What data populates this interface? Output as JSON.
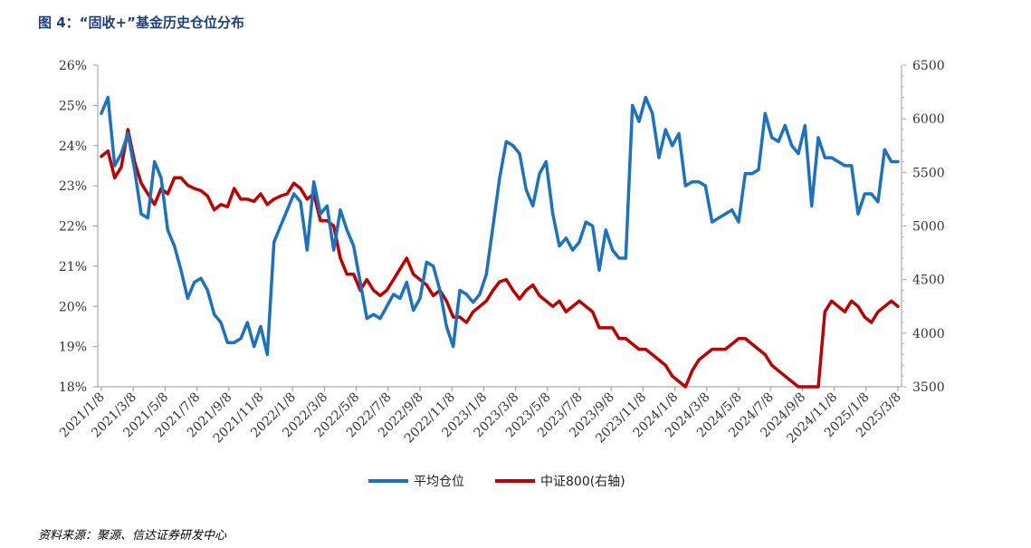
{
  "title": "图 4：“固收+”基金历史仓位分布",
  "source": "资料来源：聚源、信达证券研发中心",
  "chart_data": {
    "type": "line",
    "x_ticks": [
      "2021/1/8",
      "2021/3/8",
      "2021/5/8",
      "2021/7/8",
      "2021/9/8",
      "2021/11/8",
      "2022/1/8",
      "2022/3/8",
      "2022/5/8",
      "2022/7/8",
      "2022/9/8",
      "2022/11/8",
      "2023/1/8",
      "2023/3/8",
      "2023/5/8",
      "2023/7/8",
      "2023/9/8",
      "2023/11/8",
      "2024/1/8",
      "2024/3/8",
      "2024/5/8",
      "2024/7/8",
      "2024/9/8",
      "2024/11/8",
      "2025/1/8",
      "2025/3/8"
    ],
    "y_left": {
      "ticks": [
        "18%",
        "19%",
        "20%",
        "21%",
        "22%",
        "23%",
        "24%",
        "25%",
        "26%"
      ],
      "min": 18,
      "max": 26
    },
    "y_right": {
      "ticks": [
        "3500",
        "4000",
        "4500",
        "5000",
        "5500",
        "6000",
        "6500"
      ],
      "min": 3500,
      "max": 6500
    },
    "series": [
      {
        "name": "平均仓位",
        "axis": "left",
        "color": "#1a72c0",
        "values": [
          24.8,
          25.2,
          23.5,
          23.8,
          24.3,
          23.4,
          22.3,
          22.2,
          23.6,
          23.2,
          21.9,
          21.5,
          20.9,
          20.2,
          20.6,
          20.7,
          20.4,
          19.8,
          19.6,
          19.1,
          19.1,
          19.2,
          19.6,
          19.0,
          19.5,
          18.8,
          21.6,
          22.0,
          22.4,
          22.8,
          22.6,
          21.4,
          23.1,
          22.3,
          22.5,
          21.4,
          22.4,
          21.9,
          21.5,
          20.6,
          19.7,
          19.8,
          19.7,
          20.0,
          20.3,
          20.2,
          20.6,
          19.9,
          20.2,
          21.1,
          21.0,
          20.4,
          19.5,
          19.0,
          20.4,
          20.3,
          20.1,
          20.3,
          20.8,
          22.0,
          23.2,
          24.1,
          24.0,
          23.8,
          22.9,
          22.5,
          23.3,
          23.6,
          22.3,
          21.5,
          21.7,
          21.4,
          21.6,
          22.1,
          22.0,
          20.9,
          21.9,
          21.4,
          21.2,
          21.2,
          25.0,
          24.6,
          25.2,
          24.8,
          23.7,
          24.4,
          24.0,
          24.3,
          23.0,
          23.1,
          23.1,
          23.0,
          22.1,
          22.2,
          22.3,
          22.4,
          22.1,
          23.3,
          23.3,
          23.4,
          24.8,
          24.2,
          24.1,
          24.5,
          24.0,
          23.8,
          24.5,
          22.5,
          24.2,
          23.7,
          23.7,
          23.6,
          23.5,
          23.5,
          22.3,
          22.8,
          22.8,
          22.6,
          23.9,
          23.6,
          23.6
        ]
      },
      {
        "name": "中证800(右轴)",
        "axis": "right",
        "color": "#c00000",
        "values": [
          5650,
          5700,
          5450,
          5550,
          5900,
          5600,
          5400,
          5300,
          5200,
          5350,
          5300,
          5450,
          5450,
          5380,
          5350,
          5330,
          5280,
          5150,
          5200,
          5180,
          5350,
          5250,
          5250,
          5230,
          5300,
          5200,
          5250,
          5280,
          5300,
          5400,
          5350,
          5250,
          5300,
          5050,
          5050,
          5000,
          4700,
          4550,
          4550,
          4400,
          4500,
          4400,
          4350,
          4400,
          4500,
          4600,
          4700,
          4550,
          4500,
          4450,
          4350,
          4400,
          4300,
          4150,
          4150,
          4100,
          4200,
          4250,
          4300,
          4400,
          4480,
          4500,
          4400,
          4320,
          4400,
          4450,
          4350,
          4300,
          4250,
          4300,
          4200,
          4250,
          4300,
          4250,
          4200,
          4050,
          4050,
          4050,
          3950,
          3950,
          3900,
          3850,
          3850,
          3800,
          3750,
          3700,
          3600,
          3550,
          3500,
          3650,
          3750,
          3800,
          3850,
          3850,
          3850,
          3900,
          3950,
          3950,
          3900,
          3850,
          3800,
          3700,
          3650,
          3600,
          3550,
          3500,
          3480,
          3450,
          3500,
          4200,
          4300,
          4250,
          4200,
          4300,
          4250,
          4150,
          4100,
          4200,
          4250,
          4300,
          4250
        ]
      }
    ],
    "legend_position": "bottom-center"
  }
}
